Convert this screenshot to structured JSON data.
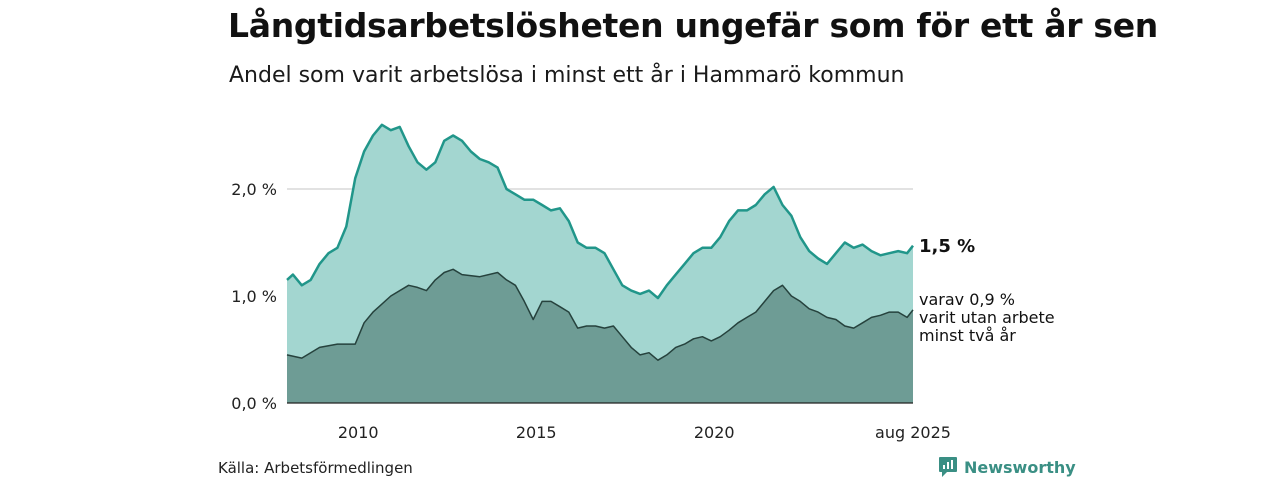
{
  "header": {
    "title": "Långtidsarbetslösheten ungefär som för ett år sen",
    "subtitle": "Andel som varit arbetslösa i minst ett år i Hammarö kommun"
  },
  "footer": {
    "source": "Källa: Arbetsförmedlingen",
    "brand": "Newsworthy"
  },
  "colors": {
    "line_total": "#21968a",
    "fill_total": "#a3d6d0",
    "line_long": "#26423d",
    "fill_long": "#6e9c95",
    "grid": "#d9d9d9"
  },
  "chart_data": {
    "type": "area",
    "x_start": "2008-01",
    "x_end": "2025-08",
    "x_ticks": [
      "2010",
      "2015",
      "2020",
      "aug 2025"
    ],
    "y_ticks": [
      "0,0 %",
      "1,0 %",
      "2,0 %"
    ],
    "ylim": [
      0,
      2.7
    ],
    "grid": true,
    "series": [
      {
        "id": "total",
        "points": [
          [
            "2008-01",
            1.15
          ],
          [
            "2008-03",
            1.2
          ],
          [
            "2008-06",
            1.1
          ],
          [
            "2008-09",
            1.15
          ],
          [
            "2008-12",
            1.3
          ],
          [
            "2009-03",
            1.4
          ],
          [
            "2009-06",
            1.45
          ],
          [
            "2009-09",
            1.65
          ],
          [
            "2009-12",
            2.1
          ],
          [
            "2010-03",
            2.35
          ],
          [
            "2010-06",
            2.5
          ],
          [
            "2010-09",
            2.6
          ],
          [
            "2010-12",
            2.55
          ],
          [
            "2011-03",
            2.58
          ],
          [
            "2011-06",
            2.4
          ],
          [
            "2011-09",
            2.25
          ],
          [
            "2011-12",
            2.18
          ],
          [
            "2012-03",
            2.25
          ],
          [
            "2012-06",
            2.45
          ],
          [
            "2012-09",
            2.5
          ],
          [
            "2012-12",
            2.45
          ],
          [
            "2013-03",
            2.35
          ],
          [
            "2013-06",
            2.28
          ],
          [
            "2013-09",
            2.25
          ],
          [
            "2013-12",
            2.2
          ],
          [
            "2014-03",
            2.0
          ],
          [
            "2014-06",
            1.95
          ],
          [
            "2014-09",
            1.9
          ],
          [
            "2014-12",
            1.9
          ],
          [
            "2015-03",
            1.85
          ],
          [
            "2015-06",
            1.8
          ],
          [
            "2015-09",
            1.82
          ],
          [
            "2015-12",
            1.7
          ],
          [
            "2016-03",
            1.5
          ],
          [
            "2016-06",
            1.45
          ],
          [
            "2016-09",
            1.45
          ],
          [
            "2016-12",
            1.4
          ],
          [
            "2017-03",
            1.25
          ],
          [
            "2017-06",
            1.1
          ],
          [
            "2017-09",
            1.05
          ],
          [
            "2017-12",
            1.02
          ],
          [
            "2018-03",
            1.05
          ],
          [
            "2018-06",
            0.98
          ],
          [
            "2018-09",
            1.1
          ],
          [
            "2018-12",
            1.2
          ],
          [
            "2019-03",
            1.3
          ],
          [
            "2019-06",
            1.4
          ],
          [
            "2019-09",
            1.45
          ],
          [
            "2019-12",
            1.45
          ],
          [
            "2020-03",
            1.55
          ],
          [
            "2020-06",
            1.7
          ],
          [
            "2020-09",
            1.8
          ],
          [
            "2020-12",
            1.8
          ],
          [
            "2021-03",
            1.85
          ],
          [
            "2021-06",
            1.95
          ],
          [
            "2021-09",
            2.02
          ],
          [
            "2021-12",
            1.85
          ],
          [
            "2022-03",
            1.75
          ],
          [
            "2022-06",
            1.55
          ],
          [
            "2022-09",
            1.42
          ],
          [
            "2022-12",
            1.35
          ],
          [
            "2023-03",
            1.3
          ],
          [
            "2023-06",
            1.4
          ],
          [
            "2023-09",
            1.5
          ],
          [
            "2023-12",
            1.45
          ],
          [
            "2024-03",
            1.48
          ],
          [
            "2024-06",
            1.42
          ],
          [
            "2024-09",
            1.38
          ],
          [
            "2024-12",
            1.4
          ],
          [
            "2025-03",
            1.42
          ],
          [
            "2025-06",
            1.4
          ],
          [
            "2025-08",
            1.47
          ]
        ]
      },
      {
        "id": "long",
        "points": [
          [
            "2008-01",
            0.45
          ],
          [
            "2008-06",
            0.42
          ],
          [
            "2008-12",
            0.52
          ],
          [
            "2009-06",
            0.55
          ],
          [
            "2009-12",
            0.55
          ],
          [
            "2010-03",
            0.75
          ],
          [
            "2010-06",
            0.85
          ],
          [
            "2010-12",
            1.0
          ],
          [
            "2011-06",
            1.1
          ],
          [
            "2011-09",
            1.08
          ],
          [
            "2011-12",
            1.05
          ],
          [
            "2012-03",
            1.15
          ],
          [
            "2012-06",
            1.22
          ],
          [
            "2012-09",
            1.25
          ],
          [
            "2012-12",
            1.2
          ],
          [
            "2013-06",
            1.18
          ],
          [
            "2013-12",
            1.22
          ],
          [
            "2014-03",
            1.15
          ],
          [
            "2014-06",
            1.1
          ],
          [
            "2014-09",
            0.95
          ],
          [
            "2014-12",
            0.78
          ],
          [
            "2015-03",
            0.95
          ],
          [
            "2015-06",
            0.95
          ],
          [
            "2015-09",
            0.9
          ],
          [
            "2015-12",
            0.85
          ],
          [
            "2016-03",
            0.7
          ],
          [
            "2016-06",
            0.72
          ],
          [
            "2016-09",
            0.72
          ],
          [
            "2016-12",
            0.7
          ],
          [
            "2017-03",
            0.72
          ],
          [
            "2017-06",
            0.62
          ],
          [
            "2017-09",
            0.52
          ],
          [
            "2017-12",
            0.45
          ],
          [
            "2018-03",
            0.47
          ],
          [
            "2018-06",
            0.4
          ],
          [
            "2018-09",
            0.45
          ],
          [
            "2018-12",
            0.52
          ],
          [
            "2019-03",
            0.55
          ],
          [
            "2019-06",
            0.6
          ],
          [
            "2019-09",
            0.62
          ],
          [
            "2019-12",
            0.58
          ],
          [
            "2020-03",
            0.62
          ],
          [
            "2020-06",
            0.68
          ],
          [
            "2020-09",
            0.75
          ],
          [
            "2020-12",
            0.8
          ],
          [
            "2021-03",
            0.85
          ],
          [
            "2021-06",
            0.95
          ],
          [
            "2021-09",
            1.05
          ],
          [
            "2021-12",
            1.1
          ],
          [
            "2022-03",
            1.0
          ],
          [
            "2022-06",
            0.95
          ],
          [
            "2022-09",
            0.88
          ],
          [
            "2022-12",
            0.85
          ],
          [
            "2023-03",
            0.8
          ],
          [
            "2023-06",
            0.78
          ],
          [
            "2023-09",
            0.72
          ],
          [
            "2023-12",
            0.7
          ],
          [
            "2024-03",
            0.75
          ],
          [
            "2024-06",
            0.8
          ],
          [
            "2024-09",
            0.82
          ],
          [
            "2024-12",
            0.85
          ],
          [
            "2025-03",
            0.85
          ],
          [
            "2025-06",
            0.8
          ],
          [
            "2025-08",
            0.87
          ]
        ]
      }
    ],
    "end_label_value": "1,5 %",
    "end_label_note": [
      "varav 0,9 %",
      "varit utan arbete",
      "minst två år"
    ]
  }
}
